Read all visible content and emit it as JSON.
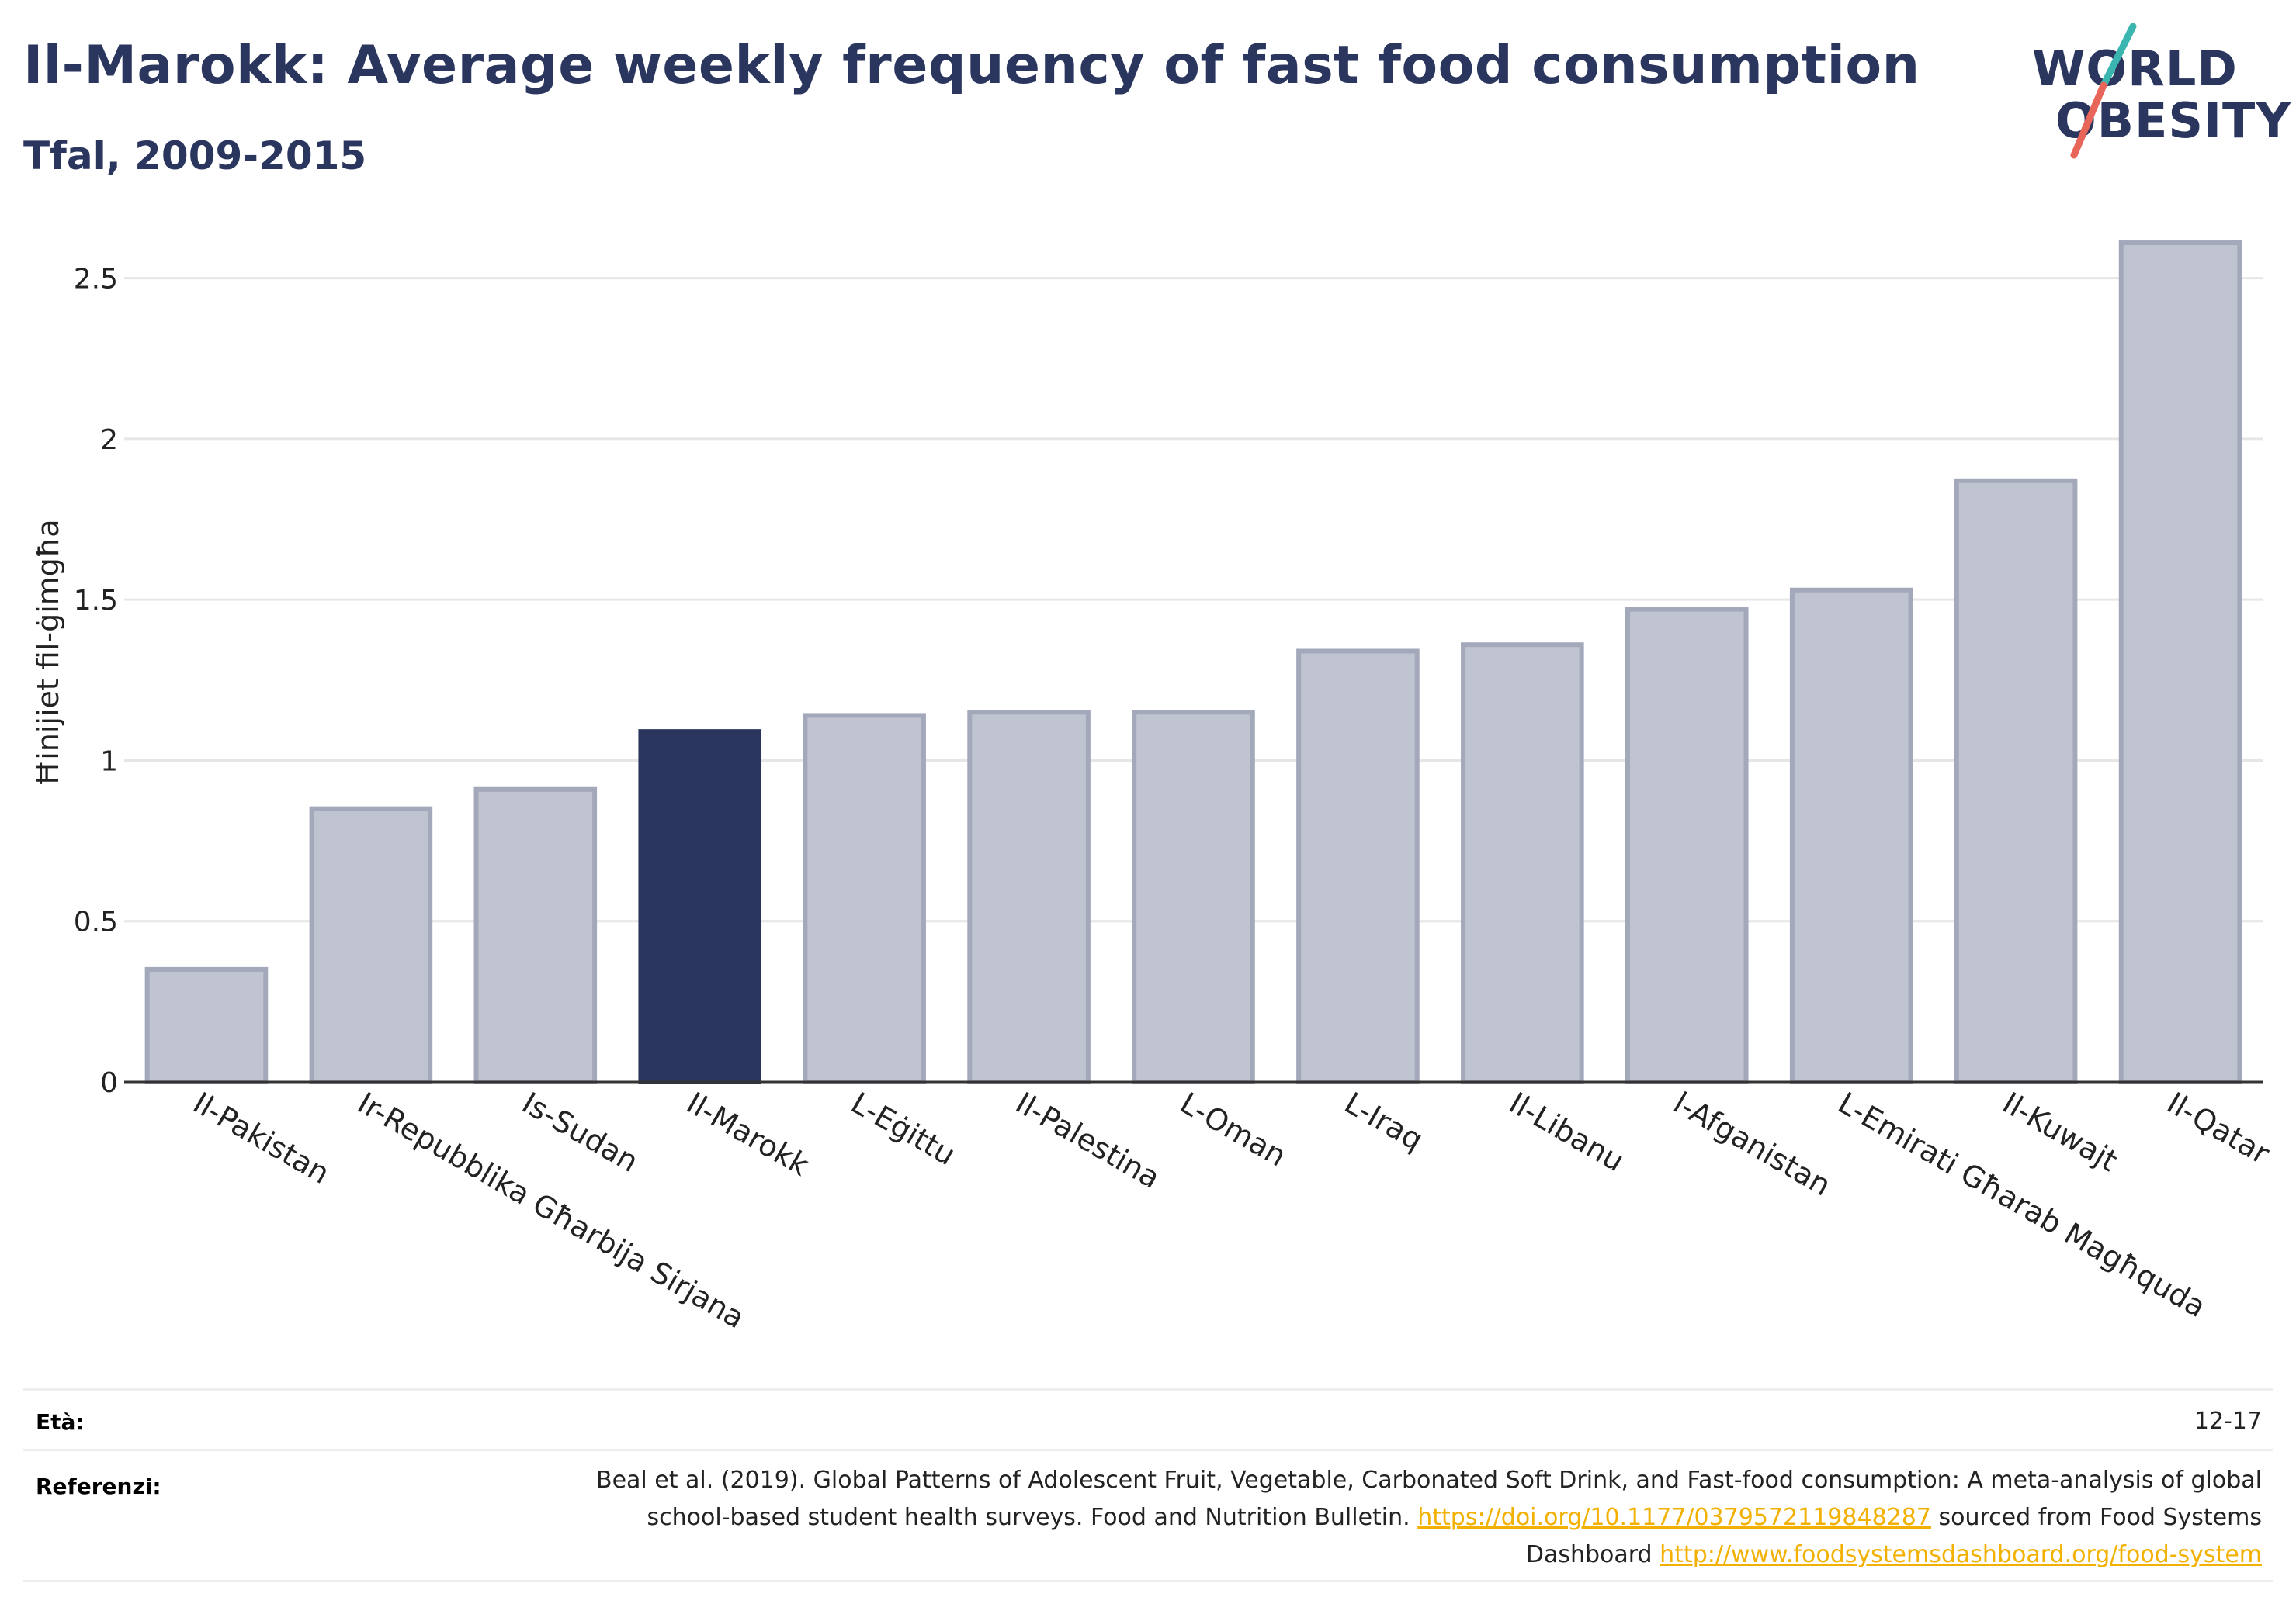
{
  "header": {
    "title": "Il-Marokk: Average weekly frequency of fast food consumption",
    "subtitle": "Tfal, 2009-2015"
  },
  "logo": {
    "line1": "WORLD",
    "line2": "OBESITY",
    "colors": {
      "teal": "#3ab5b0",
      "coral": "#e8655a",
      "navy": "#2b365e"
    }
  },
  "colors": {
    "highlight": "#2b365e",
    "bar_fill": "#c0c3d0",
    "bar_stroke": "#a4a8bb",
    "grid": "#e6e6e6",
    "axis": "#333333",
    "link": "#f2b100"
  },
  "chart_data": {
    "type": "bar",
    "categories": [
      "Il-Pakistan",
      "Ir-Repubblika Għarbija Sirjana",
      "Is-Sudan",
      "Il-Marokk",
      "L-Eġittu",
      "Il-Palestina",
      "L-Oman",
      "L-Iraq",
      "Il-Libanu",
      "l-Afganistan",
      "L-Emirati Għarab Magħquda",
      "Il-Kuwajt",
      "Il-Qatar"
    ],
    "values": [
      0.35,
      0.85,
      0.91,
      1.09,
      1.14,
      1.15,
      1.15,
      1.34,
      1.36,
      1.47,
      1.53,
      1.87,
      2.61
    ],
    "highlight_category": "Il-Marokk",
    "ylabel": "Ħinijiet fil-ġimgħa",
    "xlabel": "",
    "ylim": [
      0,
      2.75
    ],
    "yticks": [
      0,
      0.5,
      1,
      1.5,
      2,
      2.5
    ],
    "ytick_labels": [
      "0",
      "0.5",
      "1",
      "1.5",
      "2",
      "2.5"
    ],
    "grid": true
  },
  "footer": {
    "age_label": "Età:",
    "age_value": "12-17",
    "ref_label": "Referenzi:",
    "ref_text_1": "Beal et al. (2019). Global Patterns of Adolescent Fruit, Vegetable, Carbonated Soft Drink, and Fast-food consumption: A meta-analysis of global school-based student health surveys. Food and Nutrition Bulletin.",
    "ref_link_1": "https://doi.org/10.1177/0379572119848287",
    "ref_text_2": "sourced from Food Systems Dashboard",
    "ref_link_2": "http://www.foodsystemsdashboard.org/food-system"
  }
}
